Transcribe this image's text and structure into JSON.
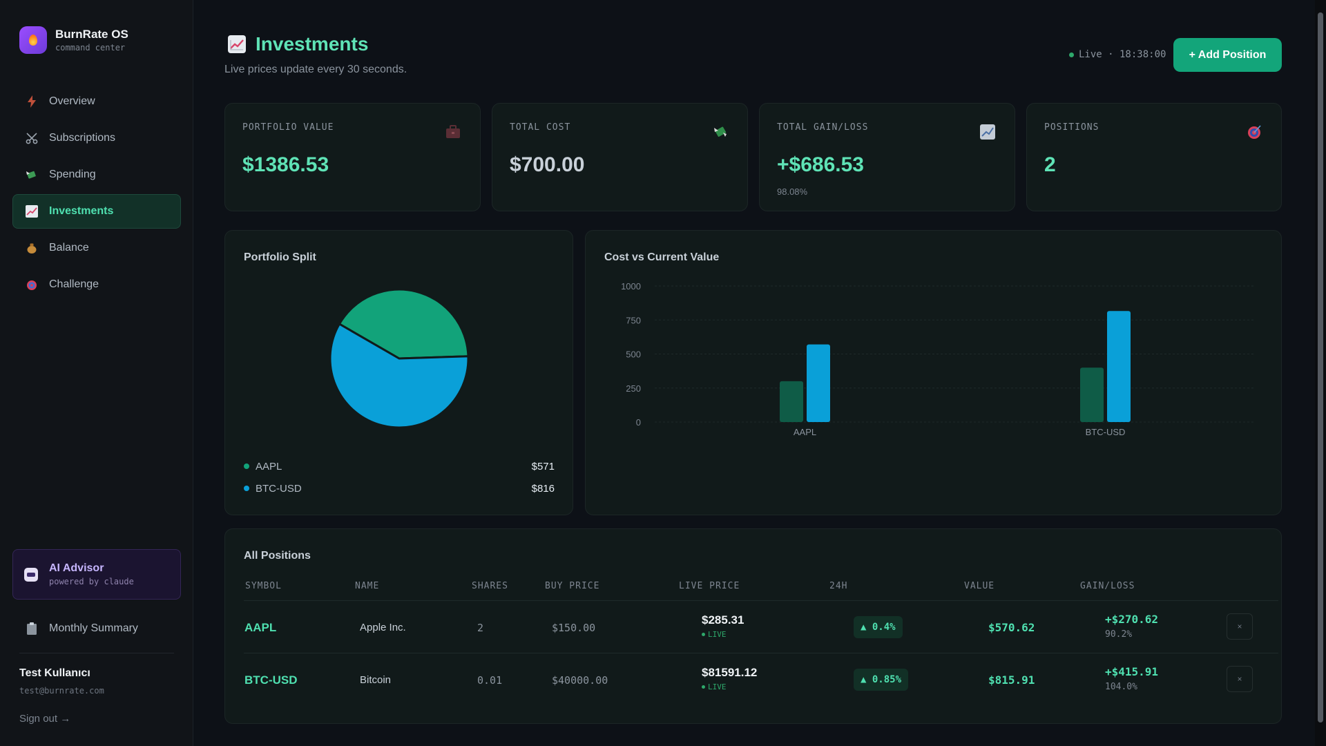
{
  "brand": {
    "title": "BurnRate OS",
    "subtitle": "command center"
  },
  "sidebar": {
    "items": [
      {
        "label": "Overview",
        "icon": "bolt-icon"
      },
      {
        "label": "Subscriptions",
        "icon": "scissors-icon"
      },
      {
        "label": "Spending",
        "icon": "money-wings-icon"
      },
      {
        "label": "Investments",
        "icon": "chart-up-icon",
        "active": true
      },
      {
        "label": "Balance",
        "icon": "money-bag-icon"
      },
      {
        "label": "Challenge",
        "icon": "target-icon"
      }
    ],
    "ai_advisor": {
      "title": "AI Advisor",
      "subtitle": "powered by claude"
    },
    "monthly_summary": "Monthly Summary",
    "user": {
      "name": "Test Kullanıcı",
      "email": "test@burnrate.com"
    },
    "signout": "Sign out →"
  },
  "header": {
    "title": "Investments",
    "subtitle": "Live prices update every 30 seconds.",
    "live_status": "Live · 18:38:00",
    "add_button": "+ Add Position"
  },
  "stats": [
    {
      "label": "PORTFOLIO VALUE",
      "value": "$1386.53",
      "sub": "",
      "color": "#5fe3b6",
      "icon": "briefcase-icon"
    },
    {
      "label": "TOTAL COST",
      "value": "$700.00",
      "sub": "",
      "color": "#c9d1d9",
      "icon": "money-wings-icon"
    },
    {
      "label": "TOTAL GAIN/LOSS",
      "value": "+$686.53",
      "sub": "98.08%",
      "color": "#5fe3b6",
      "icon": "chart-up-icon"
    },
    {
      "label": "POSITIONS",
      "value": "2",
      "sub": "",
      "color": "#5fe3b6",
      "icon": "target-icon"
    }
  ],
  "portfolio_split": {
    "title": "Portfolio Split",
    "legend": [
      {
        "name": "AAPL",
        "value": "$571",
        "color": "#12a37a"
      },
      {
        "name": "BTC-USD",
        "value": "$816",
        "color": "#0aa0d8"
      }
    ]
  },
  "cost_vs_value": {
    "title": "Cost vs Current Value"
  },
  "chart_data": [
    {
      "type": "pie",
      "title": "Portfolio Split",
      "labels": [
        "AAPL",
        "BTC-USD"
      ],
      "values": [
        570.62,
        815.91
      ],
      "colors": [
        "#12a37a",
        "#0aa0d8"
      ]
    },
    {
      "type": "bar",
      "title": "Cost vs Current Value",
      "categories": [
        "AAPL",
        "BTC-USD"
      ],
      "series": [
        {
          "values": [
            300,
            400
          ],
          "color": "#0f5c47"
        },
        {
          "values": [
            570.62,
            815.91
          ],
          "color": "#0aa0d8"
        }
      ],
      "yticks": [
        0,
        250,
        500,
        750,
        1000
      ],
      "ylim": [
        0,
        1000
      ],
      "grid": true
    }
  ],
  "positions": {
    "title": "All Positions",
    "columns": [
      "SYMBOL",
      "NAME",
      "SHARES",
      "BUY PRICE",
      "LIVE PRICE",
      "24H",
      "VALUE",
      "GAIN/LOSS"
    ],
    "rows": [
      {
        "symbol": "AAPL",
        "name": "Apple Inc.",
        "shares": "2",
        "buy_price": "$150.00",
        "live_price": "$285.31",
        "live_tag": "LIVE",
        "change": "▲ 0.4%",
        "value": "$570.62",
        "gain": "+$270.62",
        "gain_pct": "90.2%",
        "delete": "×"
      },
      {
        "symbol": "BTC-USD",
        "name": "Bitcoin",
        "shares": "0.01",
        "buy_price": "$40000.00",
        "live_price": "$81591.12",
        "live_tag": "LIVE",
        "change": "▲ 0.85%",
        "value": "$815.91",
        "gain": "+$415.91",
        "gain_pct": "104.0%",
        "delete": "×"
      }
    ]
  }
}
